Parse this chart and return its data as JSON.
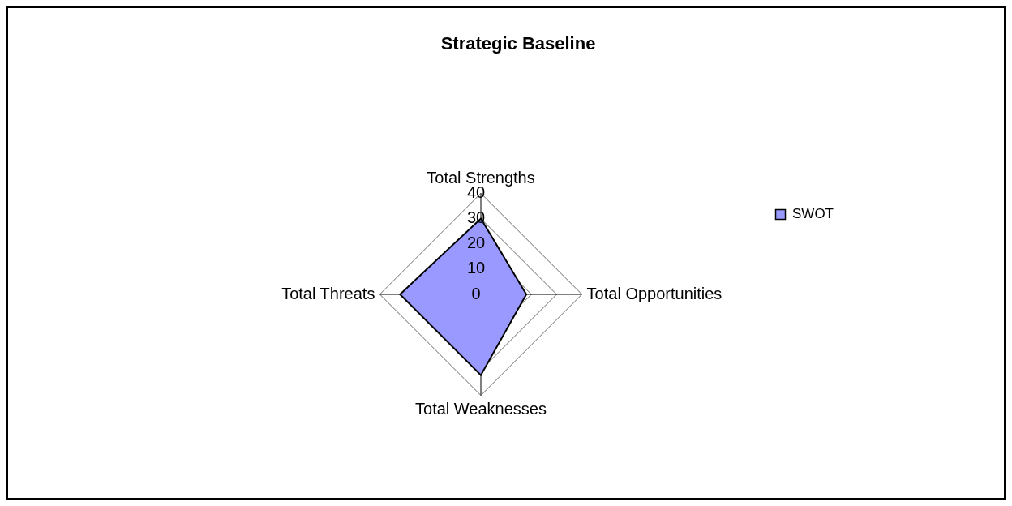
{
  "chart_data": {
    "type": "radar",
    "title": "Strategic Baseline",
    "categories": [
      "Total Strengths",
      "Total Opportunities",
      "Total Weaknesses",
      "Total Threats"
    ],
    "series": [
      {
        "name": "SWOT",
        "color": "#9999ff",
        "values": [
          30,
          18,
          32,
          32
        ]
      }
    ],
    "ylim": [
      0,
      40
    ],
    "yticks": [
      0,
      10,
      20,
      30,
      40
    ],
    "legend": "right",
    "grid": true
  }
}
